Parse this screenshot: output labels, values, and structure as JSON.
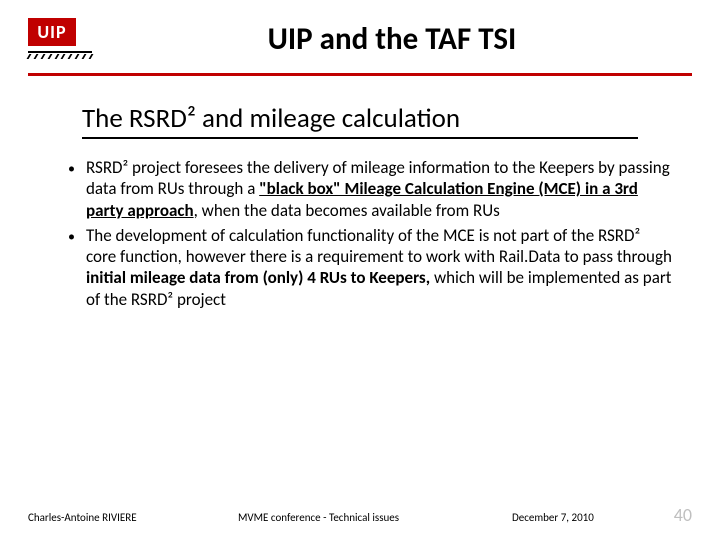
{
  "logo_text": "UIP",
  "title": "UIP and the TAF TSI",
  "subtitle": "The RSRD² and mileage calculation",
  "bullets": [
    {
      "pre": "RSRD² project foresees the delivery of mileage information to the Keepers by  passing data from RUs through a ",
      "bold1": "\"black box\" Mileage Calculation Engine (MCE) in a 3rd  party approach",
      "post": ", when the data becomes available from RUs"
    },
    {
      "pre": "The development of calculation functionality of the MCE is not part of the RSRD² core function, however there is a requirement to work with Rail.Data to pass through ",
      "bold1": "initial mileage data from (only) 4 RUs to Keepers,",
      "post": " which will be implemented as part of the RSRD² project"
    }
  ],
  "footer": {
    "author": "Charles-Antoine RIVIERE",
    "center": "MVME conference - Technical issues",
    "date": "December 7, 2010",
    "page": "40"
  },
  "colors": {
    "brand_red": "#c00000",
    "page_num": "#bfbfbf"
  }
}
